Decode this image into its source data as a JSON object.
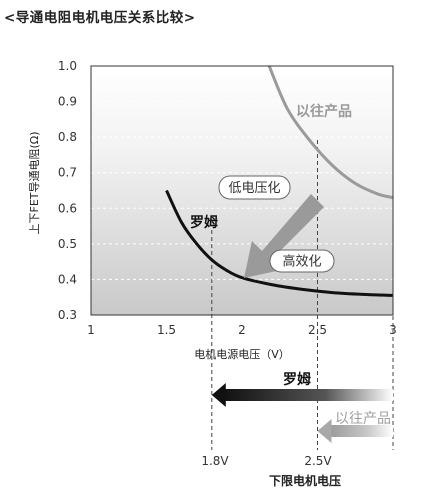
{
  "title": "<导通电阻电机电压关系比较>",
  "chart_data": {
    "type": "line",
    "xlabel": "电机电源电压（V）",
    "ylabel": "上下FET导通电阻(Ω)",
    "xlim": [
      1,
      3
    ],
    "ylim": [
      0.3,
      1.0
    ],
    "x_ticks": [
      "1",
      "1.5",
      "2",
      "2.5",
      "3"
    ],
    "y_ticks": [
      "0.3",
      "0.4",
      "0.5",
      "0.6",
      "0.7",
      "0.8",
      "0.9",
      "1.0"
    ],
    "grid": true,
    "series": [
      {
        "name": "以往产品",
        "color": "#9a9a9a",
        "x": [
          2.18,
          2.3,
          2.45,
          2.6,
          2.75,
          2.9,
          3.0
        ],
        "y": [
          1.0,
          0.88,
          0.79,
          0.72,
          0.67,
          0.64,
          0.63
        ]
      },
      {
        "name": "罗姆",
        "color": "#111111",
        "x": [
          1.5,
          1.6,
          1.7,
          1.8,
          1.9,
          2.0,
          2.2,
          2.4,
          2.6,
          2.8,
          3.0
        ],
        "y": [
          0.65,
          0.56,
          0.5,
          0.455,
          0.425,
          0.405,
          0.385,
          0.372,
          0.363,
          0.358,
          0.355
        ]
      }
    ],
    "annotations": {
      "low_voltage": "低电压化",
      "high_efficiency": "高效化"
    },
    "ranges": {
      "rohm": {
        "label": "罗姆",
        "from": 3.0,
        "to": 1.8,
        "color": "#111111"
      },
      "previous": {
        "label": "以往产品",
        "from": 3.0,
        "to": 2.5,
        "color": "#a8a8a8"
      }
    },
    "dashed_x": [
      1.8,
      2.5,
      3.0
    ],
    "lower_limit_labels": [
      "1.8V",
      "2.5V"
    ],
    "lower_limit_title": "下限电机电压"
  }
}
